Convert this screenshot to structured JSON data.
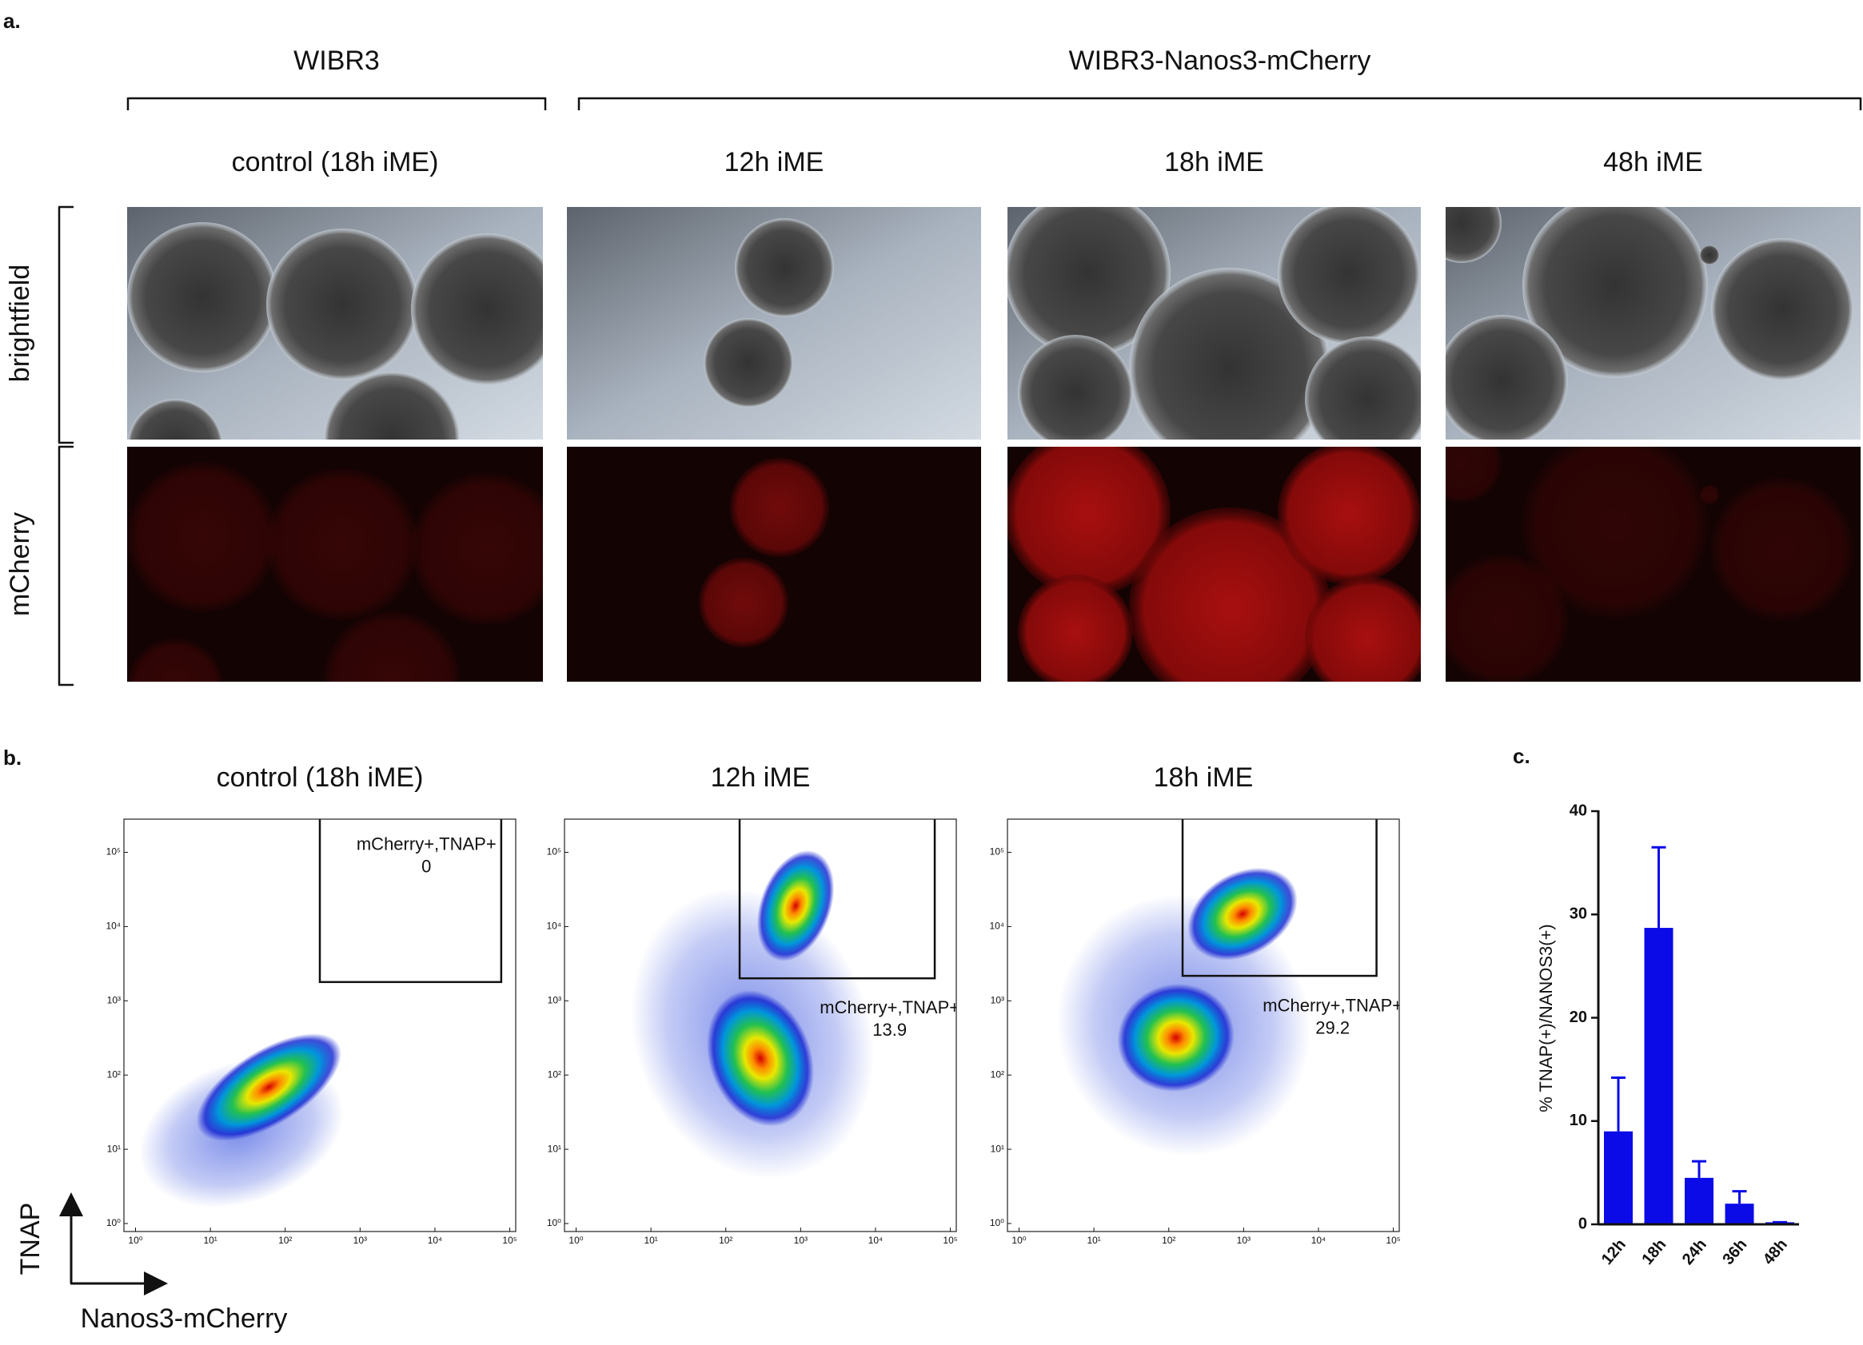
{
  "panel_a": {
    "label": "a.",
    "groups": [
      {
        "title": "WIBR3"
      },
      {
        "title": "WIBR3-Nanos3-mCherry"
      }
    ],
    "columns": [
      "control (18h iME)",
      "12h iME",
      "18h iME",
      "48h iME"
    ],
    "rows": [
      "brightfield",
      "mCherry"
    ]
  },
  "panel_b": {
    "label": "b.",
    "x_label": "Nanos3-mCherry",
    "y_label": "TNAP",
    "log_scale": true,
    "xlim": [
      0.7,
      120000
    ],
    "ylim": [
      0.78,
      280000
    ],
    "xticks": [
      {
        "value": 1,
        "label": "10⁰"
      },
      {
        "value": 10,
        "label": "10¹"
      },
      {
        "value": 100,
        "label": "10²"
      },
      {
        "value": 1000,
        "label": "10³"
      },
      {
        "value": 10000,
        "label": "10⁴"
      },
      {
        "value": 100000,
        "label": "10⁵"
      }
    ],
    "yticks": [
      {
        "value": 1,
        "label": "10⁰"
      },
      {
        "value": 10,
        "label": "10¹"
      },
      {
        "value": 100,
        "label": "10²"
      },
      {
        "value": 1000,
        "label": "10³"
      },
      {
        "value": 10000,
        "label": "10⁴"
      },
      {
        "value": 100000,
        "label": "10⁵"
      }
    ],
    "plots": [
      {
        "title": "control (18h iME)",
        "gate_label": "mCherry+,TNAP+",
        "gate_value": 0
      },
      {
        "title": "12h iME",
        "gate_label": "mCherry+,TNAP+",
        "gate_value": 13.9
      },
      {
        "title": "18h iME",
        "gate_label": "mCherry+,TNAP+",
        "gate_value": 29.2
      }
    ]
  },
  "chart_data": {
    "type": "bar",
    "label": "c.",
    "y_label": "% TNAP(+)/NANOS3(+)",
    "categories": [
      "12h",
      "18h",
      "24h",
      "36h",
      "48h"
    ],
    "values": [
      9,
      28.7,
      4.5,
      2,
      0.2
    ],
    "errors": [
      5.2,
      7.8,
      1.6,
      1.2,
      0
    ],
    "color": "#0b0be8",
    "ylim": [
      0,
      40
    ],
    "yticks": [
      0,
      10,
      20,
      30,
      40
    ]
  }
}
